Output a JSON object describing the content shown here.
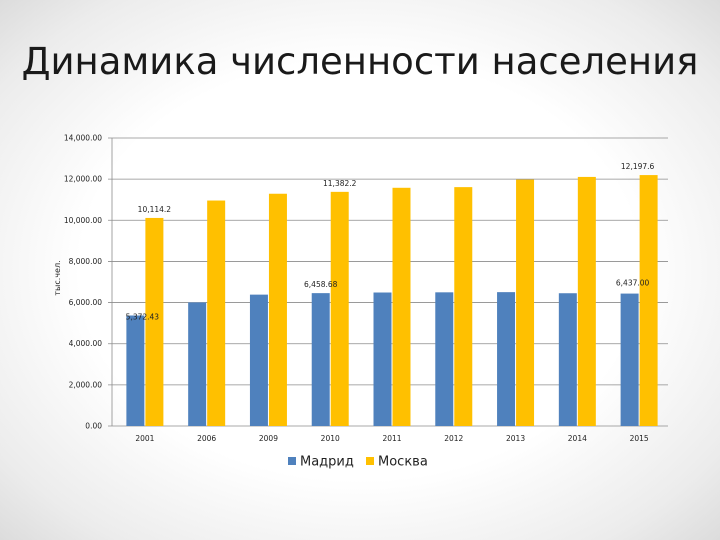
{
  "title": "Динамика численности населения",
  "chart_data": {
    "type": "bar",
    "ylabel": "тыс.чел.",
    "xlabel": "",
    "ylim": [
      0,
      14000
    ],
    "yticks": [
      0,
      2000,
      4000,
      6000,
      8000,
      10000,
      12000,
      14000
    ],
    "ytick_labels": [
      "0.00",
      "2,000.00",
      "4,000.00",
      "6,000.00",
      "8,000.00",
      "10,000.00",
      "12,000.00",
      "14,000.00"
    ],
    "categories": [
      "2001",
      "2006",
      "2009",
      "2010",
      "2011",
      "2012",
      "2013",
      "2014",
      "2015"
    ],
    "grid": true,
    "legend_position": "bottom",
    "series": [
      {
        "name": "Мадрид",
        "color": "#4f81bd",
        "values": [
          5372.43,
          6008,
          6386,
          6458.68,
          6489,
          6498,
          6507,
          6454,
          6437
        ],
        "labels": [
          "5,372.43",
          "",
          "",
          "6,458.68",
          "",
          "",
          "",
          "",
          "6,437.00"
        ]
      },
      {
        "name": "Москва",
        "color": "#ffc000",
        "values": [
          10114.2,
          10960,
          11290,
          11382.2,
          11580,
          11612,
          11980,
          12108,
          12197.6
        ],
        "labels": [
          "10,114.2",
          "",
          "",
          "11,382.2",
          "",
          "",
          "",
          "",
          "12,197.6"
        ]
      }
    ]
  }
}
